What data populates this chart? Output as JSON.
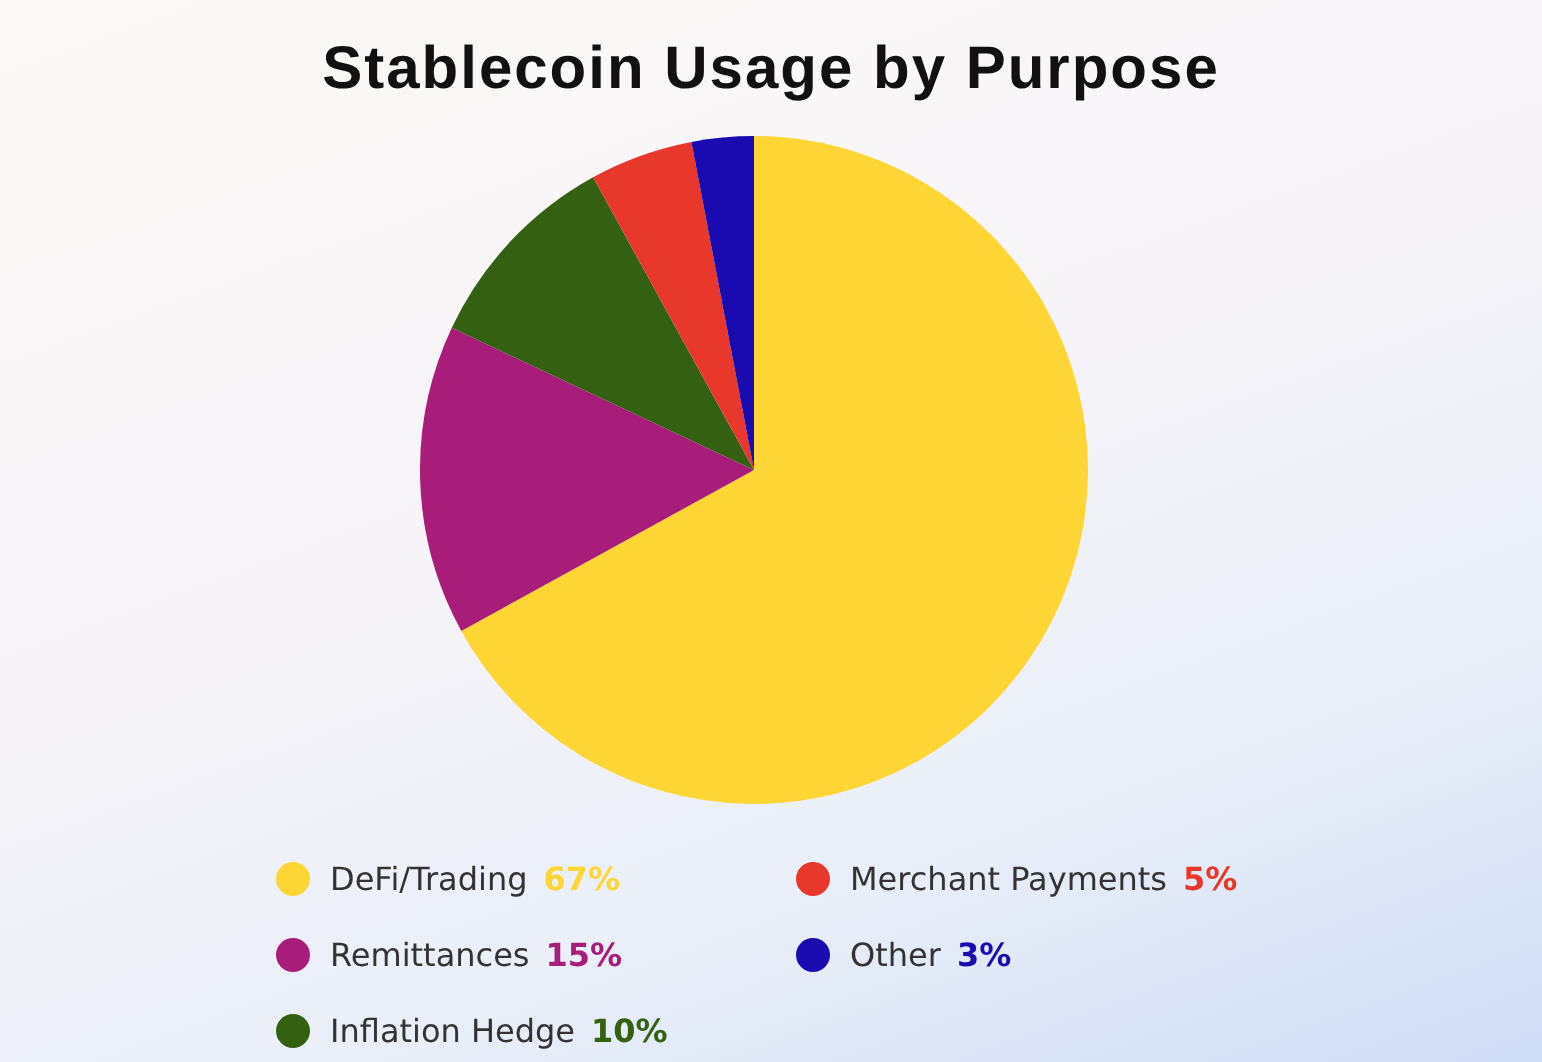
{
  "chart_data": {
    "type": "pie",
    "title": "Stablecoin Usage by Purpose",
    "categories": [
      "DeFi/Trading",
      "Remittances",
      "Inflation Hedge",
      "Merchant Payments",
      "Other"
    ],
    "values": [
      67,
      15,
      10,
      5,
      3
    ],
    "colors": [
      "#fdd535",
      "#a91d7a",
      "#336111",
      "#e8372b",
      "#1a0bb0"
    ],
    "value_labels": [
      "67%",
      "15%",
      "10%",
      "5%",
      "3%"
    ],
    "legend": "bottom"
  }
}
